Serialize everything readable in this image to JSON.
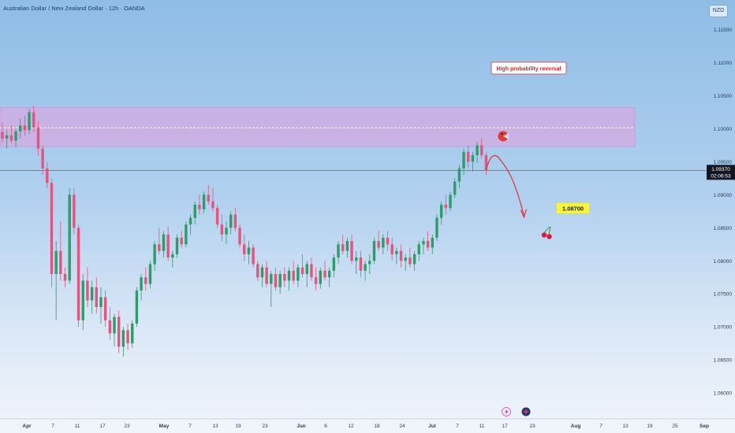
{
  "header": {
    "title": "Australian Dollar / New Zealand Dollar · 12h · OANDA",
    "currency_badge": "NZD"
  },
  "chart_data": {
    "type": "candlestick",
    "symbol": "AUDNZD",
    "timeframe": "12h",
    "ylim": [
      1.0575,
      1.1195
    ],
    "y_ticks": [
      "1.11500",
      "1.11000",
      "1.10500",
      "1.10000",
      "1.09500",
      "1.09000",
      "1.08500",
      "1.08000",
      "1.07500",
      "1.07000",
      "1.06500",
      "1.06000"
    ],
    "x_ticks": [
      {
        "label": "Apr",
        "bold": true
      },
      {
        "label": "7"
      },
      {
        "label": "11"
      },
      {
        "label": "17"
      },
      {
        "label": "23"
      },
      {
        "label": "May",
        "bold": true
      },
      {
        "label": "7"
      },
      {
        "label": "13"
      },
      {
        "label": "19"
      },
      {
        "label": "23"
      },
      {
        "label": "Jun",
        "bold": true
      },
      {
        "label": "6"
      },
      {
        "label": "12"
      },
      {
        "label": "18"
      },
      {
        "label": "24"
      },
      {
        "label": "Jul",
        "bold": true
      },
      {
        "label": "7"
      },
      {
        "label": "11"
      },
      {
        "label": "17"
      },
      {
        "label": "23"
      },
      {
        "label": "Aug",
        "bold": true
      },
      {
        "label": "7"
      },
      {
        "label": "13"
      },
      {
        "label": "19"
      },
      {
        "label": "25"
      },
      {
        "label": "Sep",
        "bold": true
      }
    ],
    "current_price": "1.09370",
    "countdown": "02:06:53",
    "price_line": 1.0937,
    "resistance_zone": [
      1.0973,
      1.1032
    ],
    "resistance_mid": 1.10015,
    "target_label": "1.08700",
    "annotation": "High probability reversal",
    "colors": {
      "up": "#2e9c68",
      "down": "#e4547e",
      "zone": "#d7a8e0",
      "arrow": "#e0393e",
      "target_bg": "#f5f53a"
    },
    "candles": [
      [
        1.0995,
        1.101,
        1.098,
        1.0985
      ],
      [
        1.0985,
        1.0998,
        1.097,
        1.099
      ],
      [
        1.099,
        1.1005,
        1.0978,
        1.0982
      ],
      [
        1.0982,
        1.1,
        1.0972,
        1.0996
      ],
      [
        1.0996,
        1.1015,
        1.0985,
        1.1005
      ],
      [
        1.1005,
        1.102,
        1.099,
        1.0998
      ],
      [
        1.0998,
        1.103,
        1.0992,
        1.1025
      ],
      [
        1.1025,
        1.1035,
        1.0995,
        1.1002
      ],
      [
        1.1002,
        1.1012,
        1.096,
        1.097
      ],
      [
        1.097,
        1.0975,
        1.093,
        1.094
      ],
      [
        1.094,
        1.095,
        1.091,
        1.0918
      ],
      [
        1.0918,
        1.0925,
        1.076,
        1.078
      ],
      [
        1.078,
        1.083,
        1.071,
        1.0815
      ],
      [
        1.0815,
        1.086,
        1.077,
        1.078
      ],
      [
        1.078,
        1.079,
        1.076,
        1.077
      ],
      [
        1.077,
        1.091,
        1.0765,
        1.09
      ],
      [
        1.09,
        1.091,
        1.084,
        1.085
      ],
      [
        1.085,
        1.0855,
        1.07,
        1.071
      ],
      [
        1.071,
        1.078,
        1.0695,
        1.077
      ],
      [
        1.077,
        1.079,
        1.073,
        1.074
      ],
      [
        1.074,
        1.077,
        1.072,
        1.076
      ],
      [
        1.076,
        1.0775,
        1.072,
        1.073
      ],
      [
        1.073,
        1.076,
        1.0705,
        1.0745
      ],
      [
        1.0745,
        1.0755,
        1.07,
        1.071
      ],
      [
        1.071,
        1.073,
        1.068,
        1.069
      ],
      [
        1.069,
        1.072,
        1.067,
        1.0715
      ],
      [
        1.0715,
        1.0725,
        1.066,
        1.067
      ],
      [
        1.067,
        1.07,
        1.0655,
        1.0695
      ],
      [
        1.0695,
        1.0705,
        1.0665,
        1.0675
      ],
      [
        1.0675,
        1.071,
        1.0668,
        1.0705
      ],
      [
        1.0705,
        1.076,
        1.07,
        1.0755
      ],
      [
        1.0755,
        1.078,
        1.074,
        1.0775
      ],
      [
        1.0775,
        1.079,
        1.0755,
        1.0765
      ],
      [
        1.0765,
        1.08,
        1.0758,
        1.0795
      ],
      [
        1.0795,
        1.083,
        1.0785,
        1.0825
      ],
      [
        1.0825,
        1.085,
        1.081,
        1.0815
      ],
      [
        1.0815,
        1.0845,
        1.0805,
        1.084
      ],
      [
        1.084,
        1.0852,
        1.08,
        1.0805
      ],
      [
        1.0805,
        1.0815,
        1.079,
        1.081
      ],
      [
        1.081,
        1.084,
        1.0805,
        1.0835
      ],
      [
        1.0835,
        1.0845,
        1.082,
        1.0825
      ],
      [
        1.0825,
        1.086,
        1.082,
        1.0855
      ],
      [
        1.0855,
        1.087,
        1.084,
        1.0865
      ],
      [
        1.0865,
        1.089,
        1.0855,
        1.0885
      ],
      [
        1.0885,
        1.09,
        1.087,
        1.0878
      ],
      [
        1.0878,
        1.0905,
        1.0872,
        1.09
      ],
      [
        1.09,
        1.0915,
        1.0885,
        1.089
      ],
      [
        1.089,
        1.091,
        1.0875,
        1.088
      ],
      [
        1.088,
        1.0885,
        1.085,
        1.0855
      ],
      [
        1.0855,
        1.087,
        1.083,
        1.084
      ],
      [
        1.084,
        1.086,
        1.0825,
        1.085
      ],
      [
        1.085,
        1.0875,
        1.084,
        1.087
      ],
      [
        1.087,
        1.088,
        1.0845,
        1.085
      ],
      [
        1.085,
        1.0855,
        1.082,
        1.0825
      ],
      [
        1.0825,
        1.084,
        1.08,
        1.081
      ],
      [
        1.081,
        1.083,
        1.0795,
        1.082
      ],
      [
        1.082,
        1.0825,
        1.079,
        1.0795
      ],
      [
        1.0795,
        1.08,
        1.077,
        1.0775
      ],
      [
        1.0775,
        1.0795,
        1.076,
        1.079
      ],
      [
        1.079,
        1.08,
        1.076,
        1.0765
      ],
      [
        1.0765,
        1.0785,
        1.073,
        1.078
      ],
      [
        1.078,
        1.079,
        1.0755,
        1.076
      ],
      [
        1.076,
        1.0785,
        1.075,
        1.078
      ],
      [
        1.078,
        1.079,
        1.076,
        1.077
      ],
      [
        1.077,
        1.079,
        1.0755,
        1.0785
      ],
      [
        1.0785,
        1.08,
        1.0765,
        1.077
      ],
      [
        1.077,
        1.0795,
        1.076,
        1.079
      ],
      [
        1.079,
        1.081,
        1.0775,
        1.078
      ],
      [
        1.078,
        1.08,
        1.076,
        1.0795
      ],
      [
        1.0795,
        1.0805,
        1.077,
        1.0775
      ],
      [
        1.0775,
        1.079,
        1.0755,
        1.0765
      ],
      [
        1.0765,
        1.079,
        1.0758,
        1.0785
      ],
      [
        1.0785,
        1.08,
        1.077,
        1.0775
      ],
      [
        1.0775,
        1.079,
        1.076,
        1.0785
      ],
      [
        1.0785,
        1.081,
        1.0775,
        1.0805
      ],
      [
        1.0805,
        1.083,
        1.0795,
        1.0825
      ],
      [
        1.0825,
        1.084,
        1.081,
        1.0815
      ],
      [
        1.0815,
        1.0835,
        1.0805,
        1.083
      ],
      [
        1.083,
        1.084,
        1.0795,
        1.08
      ],
      [
        1.08,
        1.0815,
        1.078,
        1.0805
      ],
      [
        1.0805,
        1.0815,
        1.0775,
        1.0785
      ],
      [
        1.0785,
        1.08,
        1.077,
        1.0795
      ],
      [
        1.0795,
        1.081,
        1.078,
        1.08
      ],
      [
        1.08,
        1.0835,
        1.0795,
        1.083
      ],
      [
        1.083,
        1.0845,
        1.0815,
        1.082
      ],
      [
        1.082,
        1.084,
        1.081,
        1.0835
      ],
      [
        1.0835,
        1.0845,
        1.0815,
        1.0825
      ],
      [
        1.0825,
        1.0835,
        1.08,
        1.081
      ],
      [
        1.081,
        1.082,
        1.0795,
        1.0815
      ],
      [
        1.0815,
        1.0825,
        1.079,
        1.08
      ],
      [
        1.08,
        1.081,
        1.0785,
        1.0805
      ],
      [
        1.0805,
        1.082,
        1.079,
        1.0795
      ],
      [
        1.0795,
        1.0815,
        1.0785,
        1.081
      ],
      [
        1.081,
        1.083,
        1.08,
        1.0825
      ],
      [
        1.0825,
        1.0835,
        1.081,
        1.083
      ],
      [
        1.083,
        1.0845,
        1.0815,
        1.082
      ],
      [
        1.082,
        1.084,
        1.081,
        1.0835
      ],
      [
        1.0835,
        1.087,
        1.083,
        1.0865
      ],
      [
        1.0865,
        1.089,
        1.0855,
        1.0885
      ],
      [
        1.0885,
        1.09,
        1.087,
        1.088
      ],
      [
        1.088,
        1.0905,
        1.0875,
        1.09
      ],
      [
        1.09,
        1.0925,
        1.0895,
        1.092
      ],
      [
        1.092,
        1.0945,
        1.091,
        1.094
      ],
      [
        1.094,
        1.097,
        1.093,
        1.0965
      ],
      [
        1.0965,
        1.0975,
        1.094,
        1.095
      ],
      [
        1.095,
        1.0965,
        1.0935,
        1.096
      ],
      [
        1.096,
        1.098,
        1.0948,
        1.0975
      ],
      [
        1.0975,
        1.0985,
        1.0955,
        1.096
      ],
      [
        1.096,
        1.0965,
        1.093,
        1.0937
      ]
    ]
  }
}
